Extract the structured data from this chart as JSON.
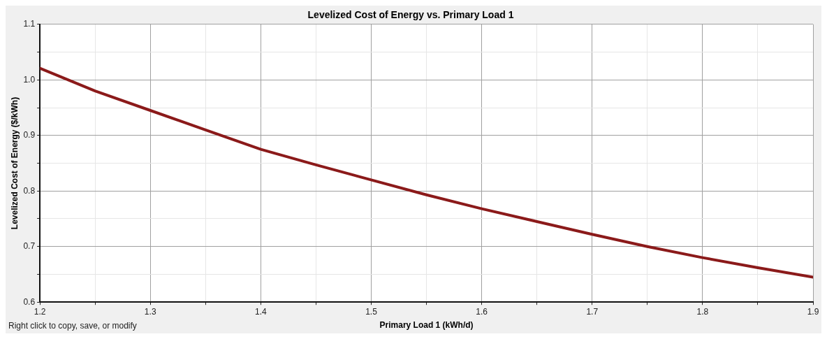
{
  "chart_data": {
    "type": "line",
    "title": "Levelized Cost of Energy vs. Primary Load 1",
    "xlabel": "Primary Load 1 (kWh/d)",
    "ylabel": "Levelized Cost of Energy ($/kWh)",
    "annotations": [
      "Right click to copy, save, or modify"
    ],
    "x": [
      1.2,
      1.25,
      1.3,
      1.35,
      1.4,
      1.45,
      1.5,
      1.55,
      1.6,
      1.65,
      1.7,
      1.75,
      1.8,
      1.85,
      1.9
    ],
    "series": [
      {
        "color": "#8b1a1a",
        "values": [
          1.021,
          0.98,
          0.945,
          0.91,
          0.875,
          0.847,
          0.82,
          0.793,
          0.768,
          0.745,
          0.722,
          0.7,
          0.68,
          0.662,
          0.645
        ]
      }
    ],
    "xlim": [
      1.2,
      1.9
    ],
    "ylim": [
      0.6,
      1.1
    ],
    "xticks": [
      1.2,
      {
        "value": 1.25,
        "label": null
      },
      1.3,
      {
        "value": 1.35,
        "label": null
      },
      1.4,
      {
        "value": 1.45,
        "label": null
      },
      1.5,
      {
        "value": 1.55,
        "label": null
      },
      1.6,
      {
        "value": 1.65,
        "label": null
      },
      1.7,
      {
        "value": 1.75,
        "label": null
      },
      1.8,
      {
        "value": 1.85,
        "label": null
      },
      1.9
    ],
    "yticks": [
      0.6,
      {
        "value": 0.65,
        "label": null
      },
      0.7,
      {
        "value": 0.75,
        "label": null
      },
      0.8,
      {
        "value": 0.85,
        "label": null
      },
      0.9,
      {
        "value": 0.95,
        "label": null
      },
      {
        "value": 1,
        "label": "1.0"
      },
      {
        "value": 1.05,
        "label": null
      },
      1.1
    ],
    "grid": true,
    "marker": "none",
    "line_style": "solid",
    "legend": false
  }
}
